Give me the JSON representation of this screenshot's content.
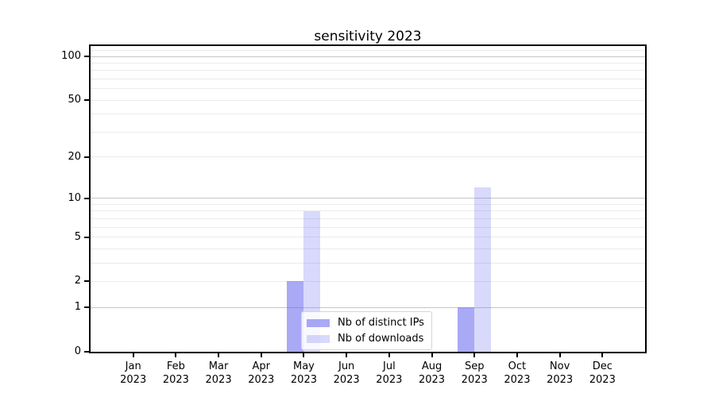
{
  "chart_data": {
    "type": "bar",
    "title": "sensitivity 2023",
    "categories": [
      "Jan 2023",
      "Feb 2023",
      "Mar 2023",
      "Apr 2023",
      "May 2023",
      "Jun 2023",
      "Jul 2023",
      "Aug 2023",
      "Sep 2023",
      "Oct 2023",
      "Nov 2023",
      "Dec 2023"
    ],
    "series": [
      {
        "name": "Nb of distinct IPs",
        "values": [
          0,
          0,
          0,
          0,
          2,
          0,
          0,
          0,
          1,
          0,
          0,
          0
        ],
        "color": "#6666ee",
        "alpha": 0.56
      },
      {
        "name": "Nb of downloads",
        "values": [
          0,
          0,
          0,
          0,
          8,
          0,
          0,
          0,
          12,
          0,
          0,
          0
        ],
        "color": "#6666ee",
        "alpha": 0.25
      }
    ],
    "xlabel": "",
    "ylabel": "",
    "yscale": "log1p",
    "ylim": [
      0,
      118
    ],
    "yticks": [
      "0",
      "1",
      "2",
      "5",
      "10",
      "20",
      "50",
      "100"
    ],
    "major_gridlines": [
      1,
      10,
      100
    ],
    "minor_gridlines": [
      2,
      3,
      4,
      5,
      6,
      7,
      8,
      9,
      20,
      30,
      40,
      50,
      60,
      70,
      80,
      90,
      110
    ],
    "grid": true,
    "legend_position": "lower center",
    "colors": {
      "spine": "#000000",
      "grid_major": "#c6c6c6",
      "grid_minor": "#ebebeb",
      "text": "#000000",
      "legend_border": "#d5d5d5",
      "legend_bg": "rgba(255,255,255,0.8)"
    }
  }
}
